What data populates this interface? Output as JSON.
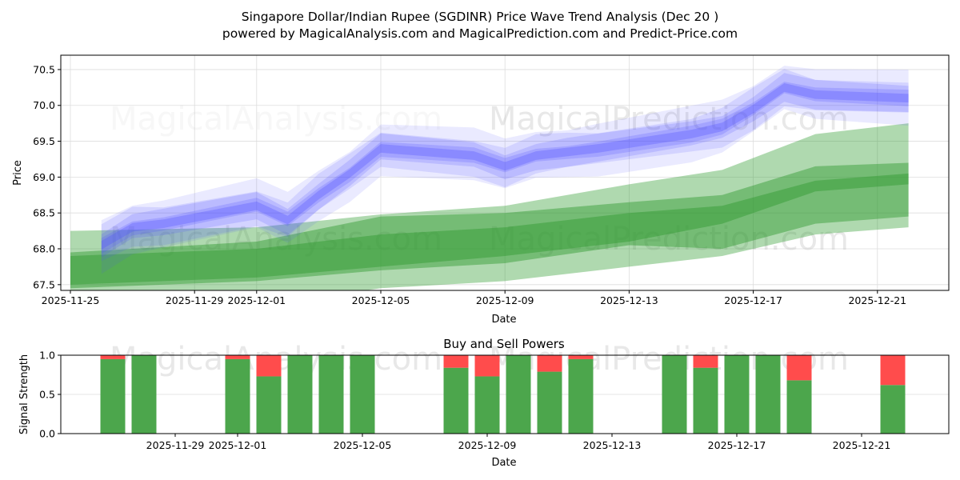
{
  "chart_data": [
    {
      "type": "area",
      "title": "Singapore Dollar/Indian Rupee (SGDINR) Price Wave Trend Analysis (Dec 20 )",
      "subtitle": "powered by MagicalAnalysis.com and MagicalPrediction.com and Predict-Price.com",
      "xlabel": "Date",
      "ylabel": "Price",
      "ylim": [
        67.42,
        70.7
      ],
      "x_ticks": [
        "2025-11-25",
        "2025-11-29",
        "2025-12-01",
        "2025-12-05",
        "2025-12-09",
        "2025-12-13",
        "2025-12-17",
        "2025-12-21"
      ],
      "y_ticks": [
        "67.5",
        "68.0",
        "68.5",
        "69.0",
        "69.5",
        "70.0",
        "70.5"
      ],
      "grid": true,
      "watermarks": [
        "MagicalAnalysis.com",
        "MagicalPrediction.com"
      ],
      "historical_wave": {
        "color": "#5050ff",
        "dates": [
          "2025-11-26",
          "2025-11-27",
          "2025-11-28",
          "2025-12-01",
          "2025-12-02",
          "2025-12-03",
          "2025-12-04",
          "2025-12-05",
          "2025-12-08",
          "2025-12-09",
          "2025-12-10",
          "2025-12-11",
          "2025-12-12",
          "2025-12-15",
          "2025-12-16",
          "2025-12-17",
          "2025-12-18",
          "2025-12-19",
          "2025-12-22"
        ],
        "center": [
          68.05,
          68.3,
          68.35,
          68.6,
          68.4,
          68.75,
          69.05,
          69.4,
          69.3,
          69.15,
          69.3,
          69.35,
          69.4,
          69.6,
          69.7,
          69.95,
          70.25,
          70.15,
          70.1
        ]
      },
      "forecast_bands": {
        "color": "#2e9a2e",
        "dates": [
          "2025-11-25",
          "2025-12-01",
          "2025-12-05",
          "2025-12-09",
          "2025-12-13",
          "2025-12-16",
          "2025-12-19",
          "2025-12-22"
        ],
        "outer_upper": [
          68.25,
          68.3,
          68.48,
          68.6,
          68.9,
          69.1,
          69.6,
          69.75
        ],
        "outer_lower": [
          67.3,
          67.2,
          67.45,
          67.55,
          67.75,
          67.9,
          68.2,
          68.3
        ],
        "mid_upper": [
          67.95,
          68.1,
          68.45,
          68.5,
          68.65,
          68.75,
          69.15,
          69.2
        ],
        "mid_lower": [
          67.45,
          67.55,
          67.7,
          67.8,
          68.05,
          68.0,
          68.35,
          68.45
        ],
        "inner_upper": [
          67.9,
          68.0,
          68.2,
          68.3,
          68.5,
          68.6,
          68.95,
          69.05
        ],
        "inner_lower": [
          67.5,
          67.6,
          67.75,
          67.9,
          68.1,
          68.35,
          68.8,
          68.9
        ]
      }
    },
    {
      "type": "bar",
      "title": "Buy and Sell Powers",
      "xlabel": "Date",
      "ylabel": "Signal Strength",
      "ylim": [
        0,
        1
      ],
      "y_ticks": [
        "0.0",
        "0.5",
        "1.0"
      ],
      "x_ticks": [
        "2025-11-29",
        "2025-12-01",
        "2025-12-05",
        "2025-12-09",
        "2025-12-13",
        "2025-12-17",
        "2025-12-21"
      ],
      "buy_color": "#4ca64c",
      "sell_color": "#ff4c4c",
      "dates": [
        "2025-11-27",
        "2025-11-28",
        "2025-12-01",
        "2025-12-02",
        "2025-12-03",
        "2025-12-04",
        "2025-12-05",
        "2025-12-08",
        "2025-12-09",
        "2025-12-10",
        "2025-12-11",
        "2025-12-12",
        "2025-12-15",
        "2025-12-16",
        "2025-12-17",
        "2025-12-18",
        "2025-12-19",
        "2025-12-22"
      ],
      "buy": [
        0.95,
        1.0,
        0.95,
        0.73,
        1.0,
        1.0,
        1.0,
        0.84,
        0.73,
        1.0,
        0.79,
        0.95,
        1.0,
        0.84,
        1.0,
        1.0,
        0.68,
        0.62
      ]
    }
  ]
}
